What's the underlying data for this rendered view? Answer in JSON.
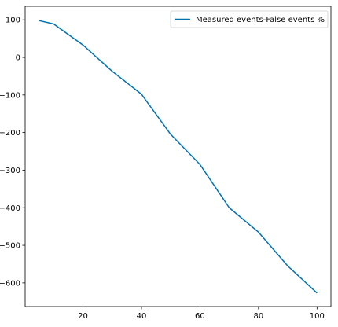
{
  "chart_data": {
    "type": "line",
    "title": "",
    "xlabel": "",
    "ylabel": "",
    "xlim": [
      0.25,
      104.75
    ],
    "ylim": [
      -663,
      136
    ],
    "xticks": [
      20,
      40,
      60,
      80,
      100
    ],
    "yticks": [
      100,
      0,
      -100,
      -200,
      -300,
      -400,
      -500,
      -600
    ],
    "grid": false,
    "legend_position": "top-right",
    "series": [
      {
        "name": "Measured events-False events %",
        "color": "#0072b2",
        "x": [
          5,
          10,
          20,
          30,
          40,
          50,
          60,
          70,
          80,
          90,
          100
        ],
        "y": [
          98,
          89,
          33,
          -37,
          -98,
          -205,
          -285,
          -400,
          -465,
          -555,
          -627
        ]
      }
    ]
  }
}
